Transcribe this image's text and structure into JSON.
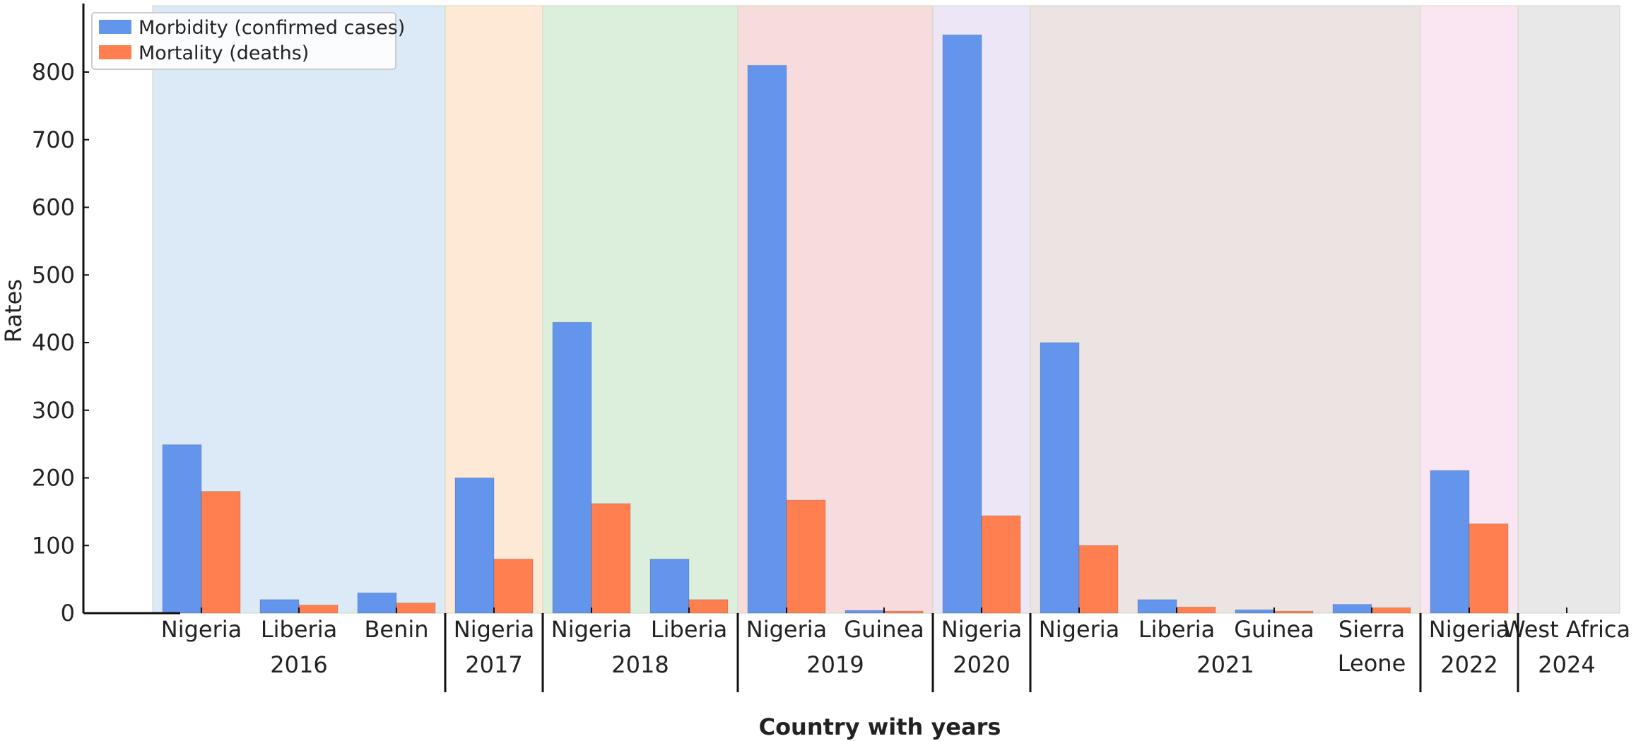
{
  "chart_data": {
    "type": "bar",
    "xlabel": "Country with years",
    "ylabel": "Rates",
    "ylim": [
      0,
      880
    ],
    "yticks": [
      0,
      100,
      200,
      300,
      400,
      500,
      600,
      700,
      800
    ],
    "legend_position": "top-left",
    "categories": [
      "Nigeria",
      "Liberia",
      "Benin",
      "Nigeria",
      "Nigeria",
      "Liberia",
      "Nigeria",
      "Guinea",
      "Nigeria",
      "Nigeria",
      "Liberia",
      "Guinea",
      "Sierra\nLeone",
      "Nigeria",
      "West Africa"
    ],
    "series": [
      {
        "name": "Morbidity (confirmed cases)",
        "color": "#6495ED",
        "values": [
          249,
          20,
          30,
          200,
          430,
          80,
          810,
          4,
          855,
          400,
          20,
          5,
          13,
          211,
          0
        ]
      },
      {
        "name": "Mortality (deaths)",
        "color": "#FF7F50",
        "values": [
          180,
          12,
          15,
          80,
          162,
          20,
          167,
          3,
          144,
          100,
          9,
          3,
          8,
          132,
          0
        ]
      }
    ],
    "year_groups": [
      {
        "year": "2016",
        "start": 0,
        "count": 3,
        "color": "#dce9f6"
      },
      {
        "year": "2017",
        "start": 3,
        "count": 1,
        "color": "#fde9d6"
      },
      {
        "year": "2018",
        "start": 4,
        "count": 2,
        "color": "#dcefdc"
      },
      {
        "year": "2019",
        "start": 6,
        "count": 2,
        "color": "#f6dcdc"
      },
      {
        "year": "2020",
        "start": 8,
        "count": 1,
        "color": "#ece6f6"
      },
      {
        "year": "2021",
        "start": 9,
        "count": 4,
        "color": "#ebe4e2"
      },
      {
        "year": "2022",
        "start": 13,
        "count": 1,
        "color": "#fae6f2"
      },
      {
        "year": "2024",
        "start": 14,
        "count": 1,
        "color": "#e8e8e8"
      }
    ]
  }
}
